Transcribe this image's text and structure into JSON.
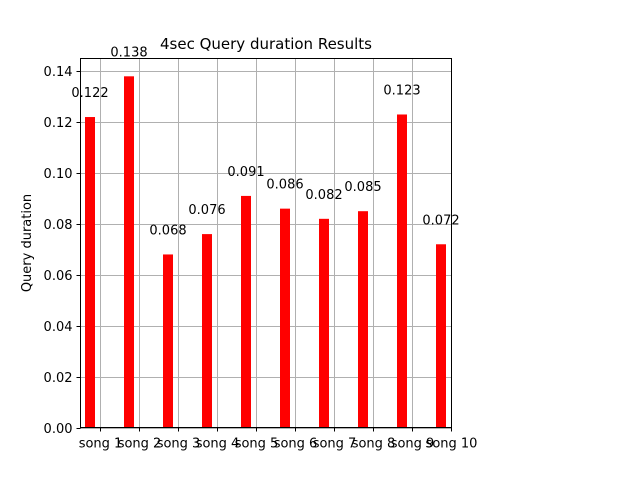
{
  "chart_data": {
    "type": "bar",
    "title": "4sec Query duration Results",
    "xlabel": "",
    "ylabel": "Query duration",
    "categories": [
      "song 1",
      "song 2",
      "song 3",
      "song 4",
      "song 5",
      "song 6",
      "song 7",
      "song 8",
      "song 9",
      "song 10"
    ],
    "values": [
      0.122,
      0.138,
      0.068,
      0.076,
      0.091,
      0.086,
      0.082,
      0.085,
      0.123,
      0.072
    ],
    "data_labels": [
      "0.122",
      "0.138",
      "0.068",
      "0.076",
      "0.091",
      "0.086",
      "0.082",
      "0.085",
      "0.123",
      "0.072"
    ],
    "yticks": [
      "0.00",
      "0.02",
      "0.04",
      "0.06",
      "0.08",
      "0.10",
      "0.12",
      "0.14"
    ],
    "ylim": [
      0,
      0.145
    ],
    "grid": true,
    "bar_color": "#ff0000"
  }
}
